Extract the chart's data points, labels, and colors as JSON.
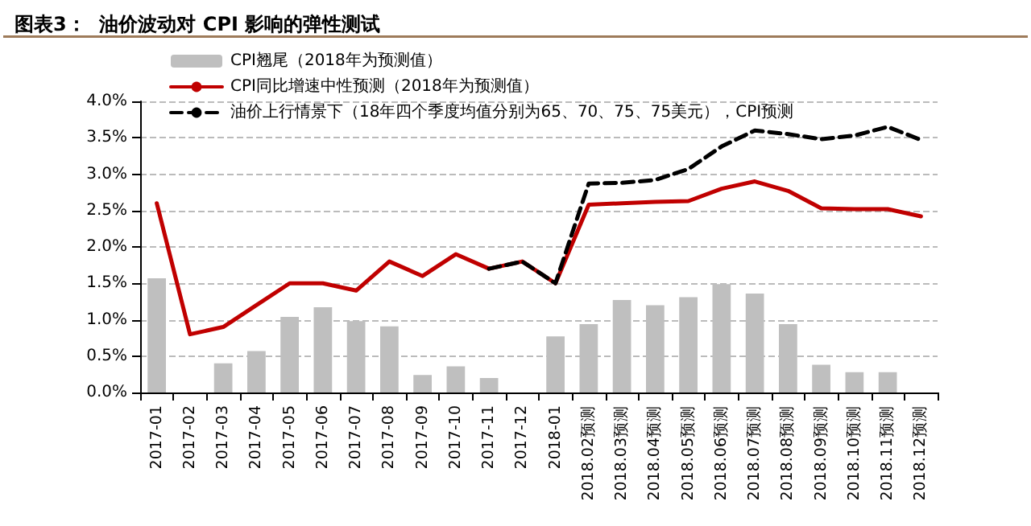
{
  "chart_data": {
    "type": "bar",
    "title": "图表3：  油价波动对 CPI 影响的弹性测试",
    "categories": [
      "2017-01",
      "2017-02",
      "2017-03",
      "2017-04",
      "2017-05",
      "2017-06",
      "2017-07",
      "2017-08",
      "2017-09",
      "2017-10",
      "2017-11",
      "2017-12",
      "2018-01",
      "2018.02预测",
      "2018.03预测",
      "2018.04预测",
      "2018.05预测",
      "2018.06预测",
      "2018.07预测",
      "2018.08预测",
      "2018.09预测",
      "2018.10预测",
      "2018.11预测",
      "2018.12预测"
    ],
    "series": [
      {
        "name": "CPI翘尾（2018年为预测值）",
        "color": "#bfbfbf",
        "values": [
          1.57,
          null,
          0.4,
          0.57,
          1.04,
          1.17,
          0.98,
          0.91,
          0.24,
          0.36,
          0.2,
          null,
          0.77,
          0.94,
          1.27,
          1.2,
          1.31,
          1.49,
          1.36,
          0.94,
          0.38,
          0.28,
          0.28,
          null
        ]
      },
      {
        "name": "CPI同比增速中性预测（2018年为预测值）",
        "type": "line",
        "color": "#c00000",
        "line_style": "solid",
        "values": [
          2.6,
          0.8,
          0.9,
          1.2,
          1.5,
          1.5,
          1.4,
          1.8,
          1.6,
          1.9,
          1.7,
          1.8,
          1.5,
          2.58,
          2.6,
          2.62,
          2.63,
          2.8,
          2.9,
          2.77,
          2.53,
          2.52,
          2.52,
          2.42
        ]
      },
      {
        "name": "油价上行情景下（18年四个季度均值分别为65、70、75、75美元），CPI预测",
        "type": "line",
        "color": "#000000",
        "line_style": "dashed",
        "values": [
          null,
          null,
          null,
          null,
          null,
          null,
          null,
          null,
          null,
          null,
          1.7,
          1.8,
          1.5,
          2.87,
          2.88,
          2.92,
          3.07,
          3.38,
          3.6,
          3.55,
          3.48,
          3.53,
          3.65,
          3.47
        ]
      }
    ],
    "ylim": [
      0,
      4
    ],
    "yticks": [
      {
        "value": 0,
        "label": "0.0%"
      },
      {
        "value": 0.5,
        "label": "0.5%"
      },
      {
        "value": 1,
        "label": "1.0%"
      },
      {
        "value": 1.5,
        "label": "1.5%"
      },
      {
        "value": 2,
        "label": "2.0%"
      },
      {
        "value": 2.5,
        "label": "2.5%"
      },
      {
        "value": 3,
        "label": "3.0%"
      },
      {
        "value": 3.5,
        "label": "3.5%"
      },
      {
        "value": 4,
        "label": "4.0%"
      }
    ],
    "grid": "y",
    "legend": "top left",
    "marker": "none"
  }
}
